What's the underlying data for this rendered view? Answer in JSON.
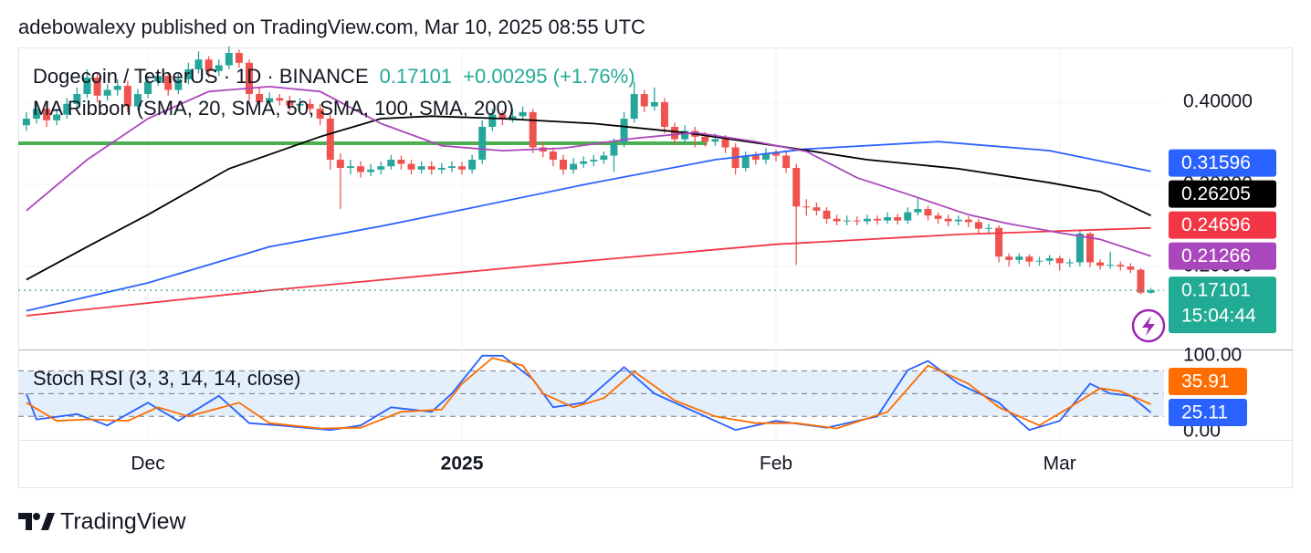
{
  "header": "adebowalexy published on TradingView.com, Mar 10, 2025 08:55 UTC",
  "footer": "TradingView",
  "chart_data": [
    {
      "type": "candlestick",
      "title": "Dogecoin / TetherUS · 1D · BINANCE",
      "change_label": "+0.00295 (+1.76%)",
      "subtitle": "MA Ribbon (SMA, 20, SMA, 50, SMA, 100, SMA, 200)",
      "countdown": "15:04:44",
      "up_color": "#26a69a",
      "down_color": "#ef5350",
      "last_color": "#22ab94",
      "xlim": [
        0.2,
        113.3
      ],
      "ylim": [
        0.0989,
        0.4667
      ],
      "yticks": [
        {
          "value": 0.2,
          "label": "0.20000"
        },
        {
          "value": 0.3,
          "label": "0.30000"
        },
        {
          "value": 0.4,
          "label": "0.40000"
        }
      ],
      "grid": true,
      "x": [
        1,
        2,
        3,
        4,
        5,
        6,
        7,
        8,
        9,
        10,
        11,
        12,
        13,
        14,
        15,
        16,
        17,
        18,
        19,
        20,
        21,
        22,
        23,
        24,
        25,
        26,
        27,
        28,
        29,
        30,
        31,
        32,
        33,
        34,
        35,
        36,
        37,
        38,
        39,
        40,
        41,
        42,
        43,
        44,
        45,
        46,
        47,
        48,
        49,
        50,
        51,
        52,
        53,
        54,
        55,
        56,
        57,
        58,
        59,
        60,
        61,
        62,
        63,
        64,
        65,
        66,
        67,
        68,
        69,
        70,
        71,
        72,
        73,
        74,
        75,
        76,
        77,
        78,
        79,
        80,
        81,
        82,
        83,
        84,
        85,
        86,
        87,
        88,
        89,
        90,
        91,
        92,
        93,
        94,
        95,
        96,
        97,
        98,
        99,
        100,
        101,
        102,
        103,
        104,
        105,
        106,
        107,
        108,
        109,
        110,
        111,
        112
      ],
      "open": [
        0.372,
        0.38,
        0.392,
        0.378,
        0.385,
        0.398,
        0.41,
        0.43,
        0.408,
        0.415,
        0.42,
        0.395,
        0.41,
        0.425,
        0.432,
        0.415,
        0.428,
        0.44,
        0.452,
        0.438,
        0.445,
        0.46,
        0.448,
        0.41,
        0.4,
        0.405,
        0.402,
        0.396,
        0.398,
        0.392,
        0.38,
        0.33,
        0.32,
        0.322,
        0.315,
        0.318,
        0.322,
        0.33,
        0.325,
        0.318,
        0.322,
        0.318,
        0.32,
        0.322,
        0.318,
        0.33,
        0.37,
        0.385,
        0.38,
        0.383,
        0.388,
        0.345,
        0.34,
        0.33,
        0.318,
        0.325,
        0.328,
        0.33,
        0.335,
        0.35,
        0.38,
        0.41,
        0.395,
        0.4,
        0.37,
        0.355,
        0.365,
        0.358,
        0.352,
        0.355,
        0.345,
        0.32,
        0.335,
        0.33,
        0.338,
        0.335,
        0.32,
        0.273,
        0.272,
        0.268,
        0.258,
        0.255,
        0.256,
        0.255,
        0.258,
        0.256,
        0.26,
        0.256,
        0.266,
        0.27,
        0.262,
        0.258,
        0.255,
        0.257,
        0.254,
        0.246,
        0.247,
        0.212,
        0.208,
        0.212,
        0.206,
        0.207,
        0.21,
        0.204,
        0.205,
        0.24,
        0.205,
        0.201,
        0.202,
        0.2,
        0.196,
        0.16806
      ],
      "high": [
        0.388,
        0.4,
        0.398,
        0.392,
        0.405,
        0.418,
        0.44,
        0.436,
        0.422,
        0.428,
        0.426,
        0.416,
        0.432,
        0.44,
        0.436,
        0.435,
        0.448,
        0.462,
        0.456,
        0.452,
        0.468,
        0.464,
        0.452,
        0.418,
        0.412,
        0.41,
        0.408,
        0.405,
        0.404,
        0.398,
        0.385,
        0.338,
        0.33,
        0.328,
        0.325,
        0.328,
        0.336,
        0.335,
        0.33,
        0.328,
        0.328,
        0.326,
        0.328,
        0.327,
        0.336,
        0.378,
        0.392,
        0.39,
        0.392,
        0.395,
        0.392,
        0.352,
        0.345,
        0.336,
        0.332,
        0.334,
        0.336,
        0.34,
        0.356,
        0.388,
        0.425,
        0.415,
        0.418,
        0.405,
        0.375,
        0.372,
        0.37,
        0.364,
        0.362,
        0.36,
        0.35,
        0.34,
        0.34,
        0.344,
        0.342,
        0.34,
        0.325,
        0.282,
        0.278,
        0.272,
        0.263,
        0.262,
        0.261,
        0.263,
        0.262,
        0.266,
        0.264,
        0.272,
        0.283,
        0.274,
        0.266,
        0.263,
        0.262,
        0.261,
        0.258,
        0.252,
        0.25,
        0.216,
        0.216,
        0.215,
        0.212,
        0.214,
        0.213,
        0.209,
        0.244,
        0.242,
        0.209,
        0.218,
        0.206,
        0.204,
        0.198,
        0.174
      ],
      "low": [
        0.365,
        0.374,
        0.37,
        0.372,
        0.38,
        0.392,
        0.405,
        0.4,
        0.402,
        0.408,
        0.388,
        0.39,
        0.405,
        0.42,
        0.408,
        0.41,
        0.422,
        0.435,
        0.43,
        0.432,
        0.44,
        0.442,
        0.402,
        0.392,
        0.395,
        0.396,
        0.39,
        0.39,
        0.386,
        0.372,
        0.318,
        0.27,
        0.312,
        0.308,
        0.31,
        0.312,
        0.318,
        0.318,
        0.312,
        0.313,
        0.312,
        0.313,
        0.315,
        0.312,
        0.313,
        0.325,
        0.365,
        0.372,
        0.375,
        0.378,
        0.338,
        0.333,
        0.322,
        0.312,
        0.313,
        0.32,
        0.322,
        0.325,
        0.315,
        0.345,
        0.375,
        0.388,
        0.39,
        0.362,
        0.348,
        0.35,
        0.345,
        0.346,
        0.347,
        0.338,
        0.312,
        0.316,
        0.324,
        0.325,
        0.328,
        0.314,
        0.202,
        0.262,
        0.262,
        0.252,
        0.25,
        0.25,
        0.25,
        0.251,
        0.251,
        0.252,
        0.251,
        0.252,
        0.262,
        0.256,
        0.252,
        0.249,
        0.25,
        0.248,
        0.24,
        0.241,
        0.205,
        0.2,
        0.203,
        0.2,
        0.201,
        0.202,
        0.195,
        0.199,
        0.2,
        0.199,
        0.196,
        0.197,
        0.195,
        0.192,
        0.166,
        0.167
      ],
      "close": [
        0.38,
        0.392,
        0.378,
        0.385,
        0.398,
        0.41,
        0.43,
        0.408,
        0.415,
        0.42,
        0.395,
        0.41,
        0.425,
        0.432,
        0.415,
        0.428,
        0.44,
        0.452,
        0.438,
        0.445,
        0.46,
        0.448,
        0.41,
        0.4,
        0.405,
        0.402,
        0.396,
        0.398,
        0.392,
        0.38,
        0.33,
        0.32,
        0.322,
        0.315,
        0.318,
        0.322,
        0.33,
        0.325,
        0.318,
        0.322,
        0.318,
        0.32,
        0.322,
        0.318,
        0.33,
        0.37,
        0.385,
        0.38,
        0.383,
        0.388,
        0.345,
        0.34,
        0.33,
        0.318,
        0.325,
        0.328,
        0.33,
        0.335,
        0.35,
        0.38,
        0.41,
        0.395,
        0.4,
        0.37,
        0.355,
        0.365,
        0.358,
        0.352,
        0.355,
        0.345,
        0.32,
        0.335,
        0.33,
        0.338,
        0.335,
        0.32,
        0.273,
        0.272,
        0.268,
        0.258,
        0.255,
        0.256,
        0.255,
        0.258,
        0.256,
        0.26,
        0.256,
        0.266,
        0.27,
        0.262,
        0.258,
        0.255,
        0.257,
        0.254,
        0.246,
        0.247,
        0.212,
        0.208,
        0.212,
        0.206,
        0.207,
        0.21,
        0.204,
        0.205,
        0.24,
        0.205,
        0.201,
        0.202,
        0.2,
        0.196,
        0.16806,
        0.17101
      ],
      "level_line": {
        "value": 0.35,
        "color": "#4caf50",
        "x": [
          0.2,
          68.2
        ]
      },
      "series": [
        {
          "color": "#2962ff",
          "x": [
            1,
            13,
            25,
            36,
            44,
            57,
            69,
            78,
            91,
            102,
            112
          ],
          "values": [
            0.146,
            0.18,
            0.224,
            0.249,
            0.269,
            0.302,
            0.33,
            0.343,
            0.352,
            0.341,
            0.31596
          ]
        },
        {
          "color": "#000000",
          "x": [
            1,
            7,
            13,
            21,
            30,
            36,
            41,
            48,
            57,
            66,
            75,
            84,
            93,
            102,
            107,
            112
          ],
          "values": [
            0.184,
            0.224,
            0.263,
            0.319,
            0.358,
            0.38,
            0.383,
            0.38,
            0.374,
            0.363,
            0.347,
            0.33,
            0.319,
            0.302,
            0.291,
            0.26205
          ]
        },
        {
          "color": "#f23645",
          "x": [
            1,
            25,
            52,
            75,
            93,
            112
          ],
          "values": [
            0.14,
            0.171,
            0.202,
            0.227,
            0.239,
            0.24696
          ]
        },
        {
          "color": "#ab47bc",
          "x": [
            1,
            7,
            13,
            19,
            25,
            30,
            36,
            42,
            48,
            54,
            61,
            67,
            73,
            78,
            83,
            88,
            94,
            98,
            103,
            107,
            112
          ],
          "values": [
            0.268,
            0.33,
            0.38,
            0.413,
            0.419,
            0.413,
            0.374,
            0.347,
            0.341,
            0.344,
            0.356,
            0.363,
            0.352,
            0.34,
            0.308,
            0.288,
            0.263,
            0.252,
            0.241,
            0.233,
            0.21266
          ]
        }
      ]
    },
    {
      "type": "line",
      "title": "Stoch RSI (3, 3, 14, 14, close)",
      "xlim": [
        0.2,
        113.3
      ],
      "xticks": [
        {
          "value": 13,
          "label": "Dec"
        },
        {
          "value": 44,
          "label": "2025",
          "bold": true
        },
        {
          "value": 75,
          "label": "Feb"
        },
        {
          "value": 103,
          "label": "Mar"
        }
      ],
      "ylim": [
        -11,
        107
      ],
      "yticks": [
        {
          "value": 100,
          "label": "100.00"
        },
        {
          "value": 0,
          "label": "0.00"
        }
      ],
      "levels": [
        20,
        50,
        80
      ],
      "band_color": "#e3effa",
      "series": [
        {
          "color": "#2962ff",
          "x": [
            1,
            2,
            6,
            9,
            13,
            16,
            20,
            23,
            26,
            31,
            34,
            37,
            41,
            43,
            46,
            48,
            51,
            53,
            56,
            60,
            63,
            67,
            71,
            75,
            80,
            85,
            88,
            90,
            93,
            97,
            100,
            103,
            106,
            108,
            110,
            112
          ],
          "values": [
            50,
            16,
            23,
            8,
            38,
            14,
            47,
            11,
            8,
            2,
            8,
            32,
            26,
            50,
            100,
            100,
            69,
            32,
            38,
            85,
            50,
            26,
            2,
            14,
            5,
            20,
            81,
            93,
            63,
            38,
            2,
            14,
            63,
            50,
            47,
            25.11
          ]
        },
        {
          "color": "#ff6d00",
          "x": [
            1,
            4,
            7,
            11,
            14,
            17,
            22,
            25,
            30,
            34,
            38,
            42,
            44,
            47,
            50,
            52,
            55,
            58,
            61,
            65,
            69,
            73,
            77,
            81,
            86,
            90,
            94,
            97,
            101,
            104,
            107,
            109,
            112
          ],
          "values": [
            38,
            14,
            16,
            14,
            32,
            20,
            38,
            11,
            4,
            5,
            26,
            29,
            63,
            97,
            87,
            50,
            32,
            44,
            79,
            41,
            20,
            11,
            11,
            4,
            26,
            87,
            63,
            32,
            8,
            32,
            57,
            53,
            35.91
          ]
        }
      ]
    }
  ]
}
